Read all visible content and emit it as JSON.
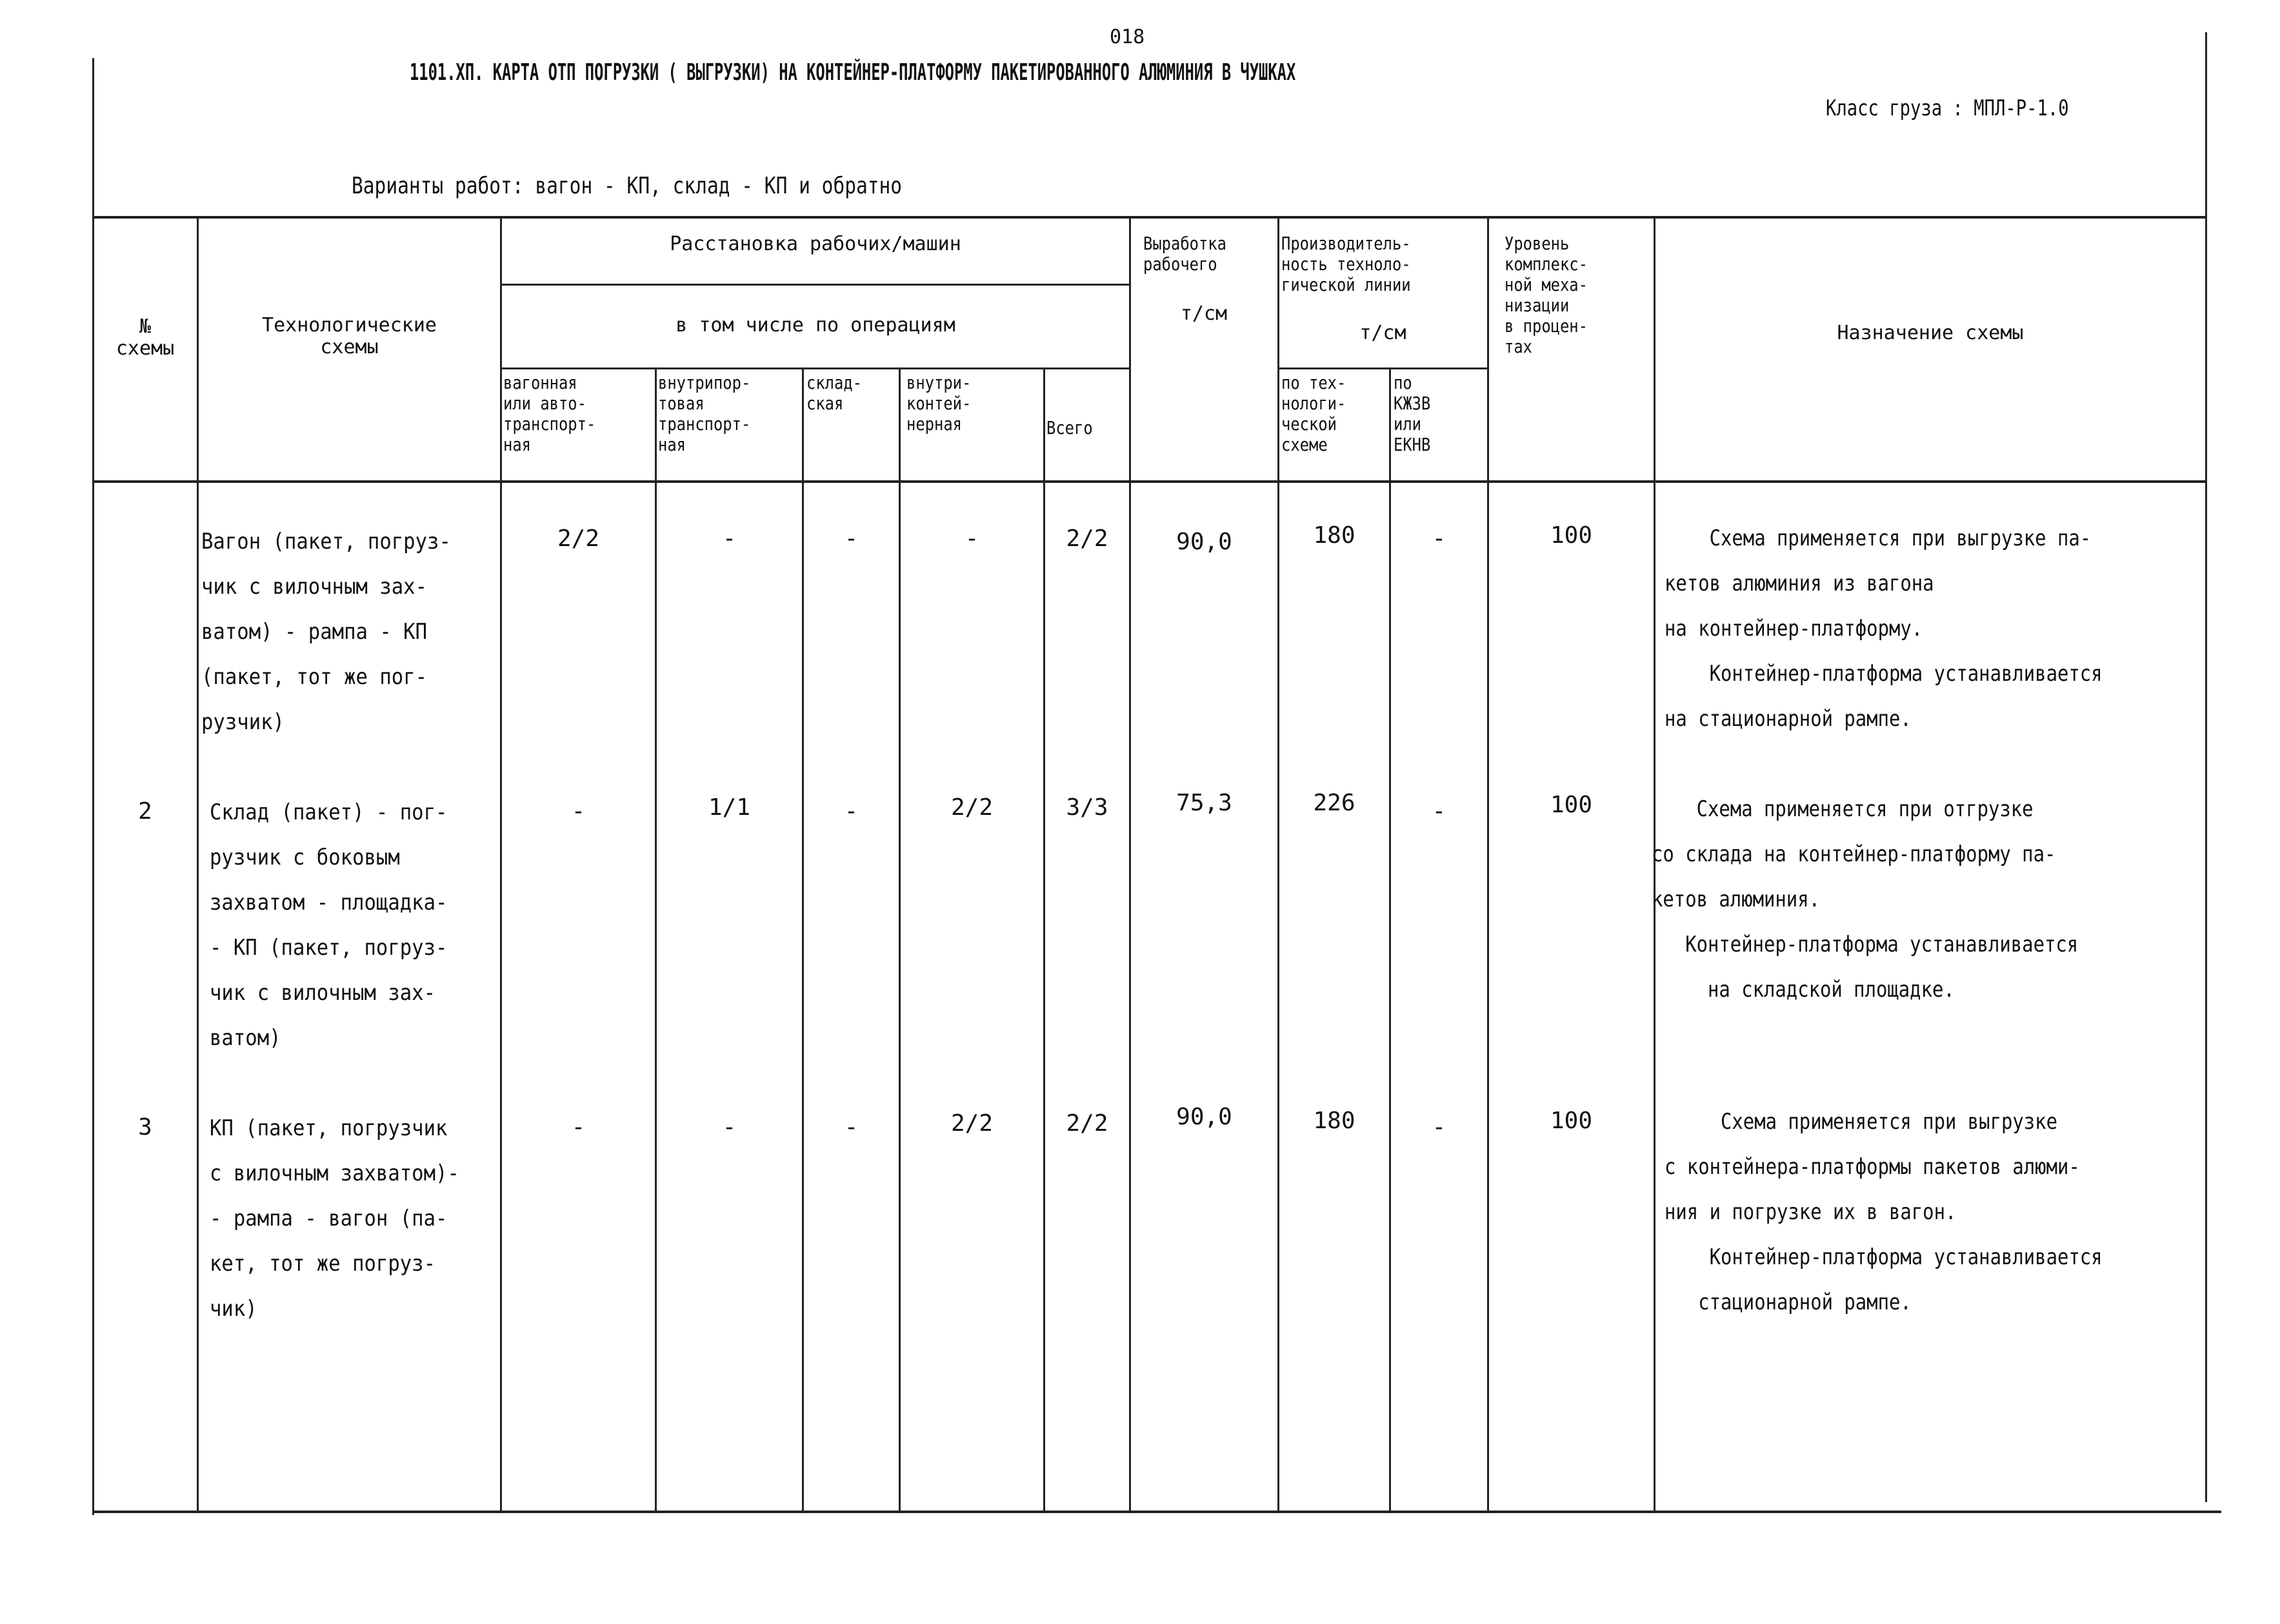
{
  "page_number": "018",
  "title": "1101.ХП. КАРТА ОТП ПОГРУЗКИ ( ВЫГРУЗКИ) НА КОНТЕЙНЕР-ПЛАТФОРМУ ПАКЕТИРОВАННОГО АЛЮМИНИЯ В ЧУШКАХ",
  "cargo_class": "Класс груза : МПЛ-Р-1.0",
  "work_variants": "Варианты работ: вагон - КП, склад - КП и обратно",
  "headers": {
    "num": "№\nсхемы",
    "tech": "Технологические\nсхемы",
    "placement": "Расстановка рабочих/машин",
    "by_ops": "в том числе по операциям",
    "ops": [
      "вагонная\nили авто-\nтранспорт-\nная",
      "внутрипор-\nтовая\nтранспорт-\nная",
      "склад-\nская",
      "внутри-\nконтей-\nнерная",
      "Всего"
    ],
    "output": "Выработка\nрабочего",
    "output_unit": "т/см",
    "productivity": "Производитель-\nность техноло-\nгической линии",
    "productivity_unit": "т/см",
    "prod_sub": [
      "по тех-\nнологи-\nческой\nсхеме",
      "по\nКЖЗВ\nили\nЕКНВ"
    ],
    "mechanization": "Уровень\nкомплекс-\nной меха-\nнизации\nв процен-\nтах",
    "purpose": "Назначение схемы"
  },
  "rows": [
    {
      "num": "",
      "tech": "Вагон (пакет, погруз-\nчик с вилочным зах-\nватом) - рампа - КП\n(пакет, тот же пог-\nрузчик)",
      "ops": [
        "2/2",
        "-",
        "-",
        "-",
        "2/2"
      ],
      "output": "90,0",
      "prod_tech": "180",
      "prod_kzhv": "-",
      "mech": "100",
      "purpose": "    Схема применяется при выгрузке па-\nкетов алюминия из вагона\nна контейнер-платформу.\n    Контейнер-платформа устанавливается\nна стационарной рампе."
    },
    {
      "num": "2",
      "tech": "Склад (пакет) - пог-\nрузчик с боковым\nзахватом - площадка-\n- КП (пакет, погруз-\nчик с вилочным зах-\nватом)",
      "ops": [
        "-",
        "1/1",
        "-",
        "2/2",
        "3/3"
      ],
      "output": "75,3",
      "prod_tech": "226",
      "prod_kzhv": "-",
      "mech": "100",
      "purpose": "    Схема применяется при отгрузке\nсо склада на контейнер-платформу па-\nкетов алюминия.\n   Контейнер-платформа устанавливается\n     на складской площадке."
    },
    {
      "num": "3",
      "tech": "КП (пакет, погрузчик\nс вилочным захватом)-\n- рампа - вагон (па-\nкет, тот же погруз-\nчик)",
      "ops": [
        "-",
        "-",
        "-",
        "2/2",
        "2/2"
      ],
      "output": "90,0",
      "prod_tech": "180",
      "prod_kzhv": "-",
      "mech": "100",
      "purpose": "     Схема применяется при выгрузке\nс контейнера-платформы пакетов алюми-\nния и погрузке их в вагон.\n    Контейнер-платформа устанавливается\n   стационарной рампе."
    }
  ]
}
